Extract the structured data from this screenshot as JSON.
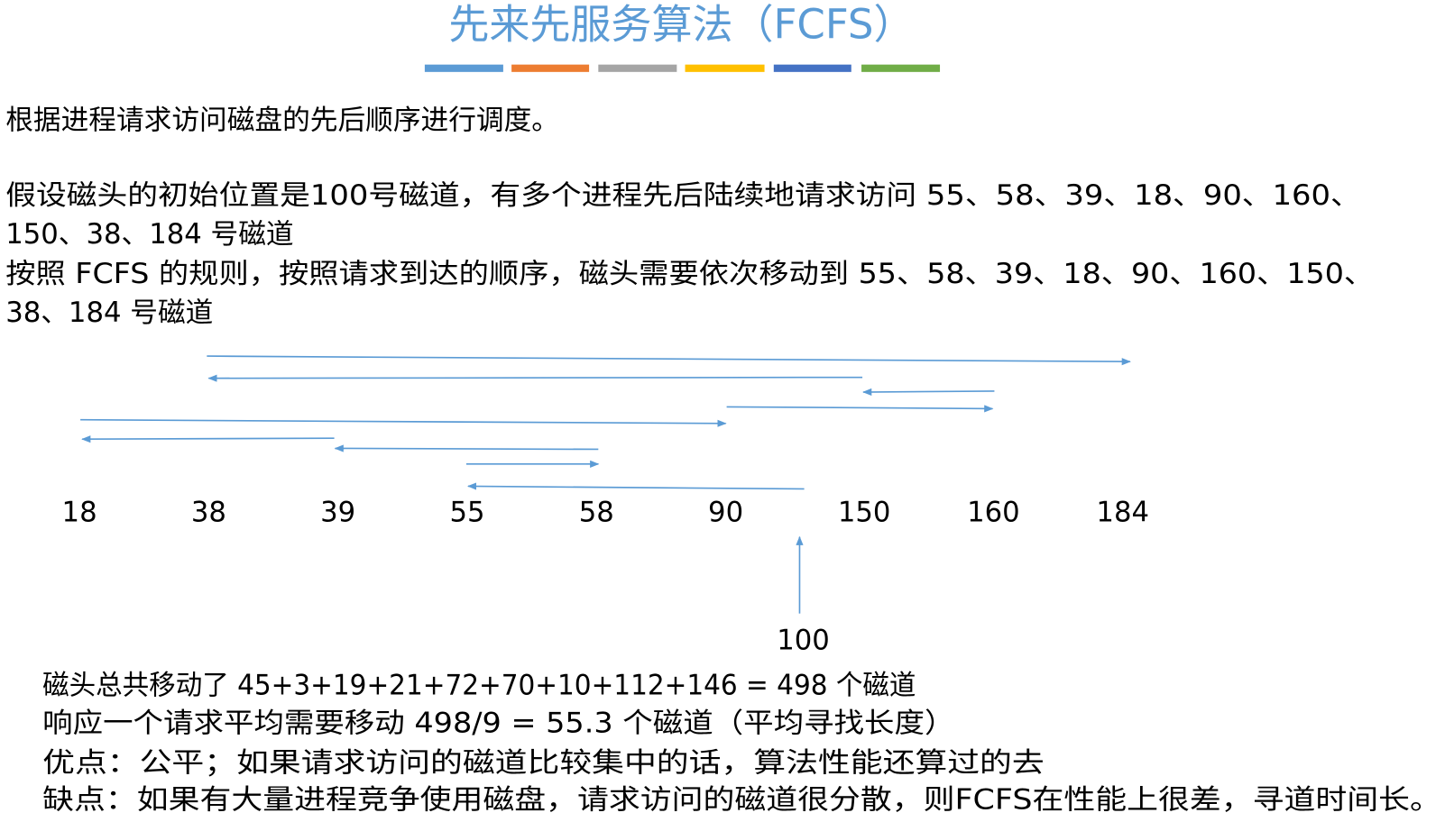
{
  "header": {
    "title": "先来先服务算法（FCFS）"
  },
  "intro": "根据进程请求访问磁盘的先后顺序进行调度。",
  "assumption": [
    "假设磁头的初始位置是100号磁道，有多个进程先后陆续地请求访问 55、58、39、18、90、160、",
    "150、38、184 号磁道"
  ],
  "rule": [
    "按照 FCFS 的规则，按照请求到达的顺序，磁头需要依次移动到 55、58、39、18、90、160、150、",
    "38、184 号磁道"
  ],
  "diagram": {
    "tracks": [
      "18",
      "38",
      "39",
      "55",
      "58",
      "90",
      "150",
      "160",
      "184"
    ],
    "start": "100"
  },
  "summary": [
    "磁头总共移动了  45+3+19+21+72+70+10+112+146 = 498  个磁道",
    "响应一个请求平均需要移动 498/9 = 55.3 个磁道（平均寻找长度）",
    "优点：公平；如果请求访问的磁道比较集中的话，算法性能还算过的去",
    "缺点：如果有大量进程竞争使用磁盘，请求访问的磁道很分散，则FCFS在性能上很差，寻道时间长。"
  ]
}
